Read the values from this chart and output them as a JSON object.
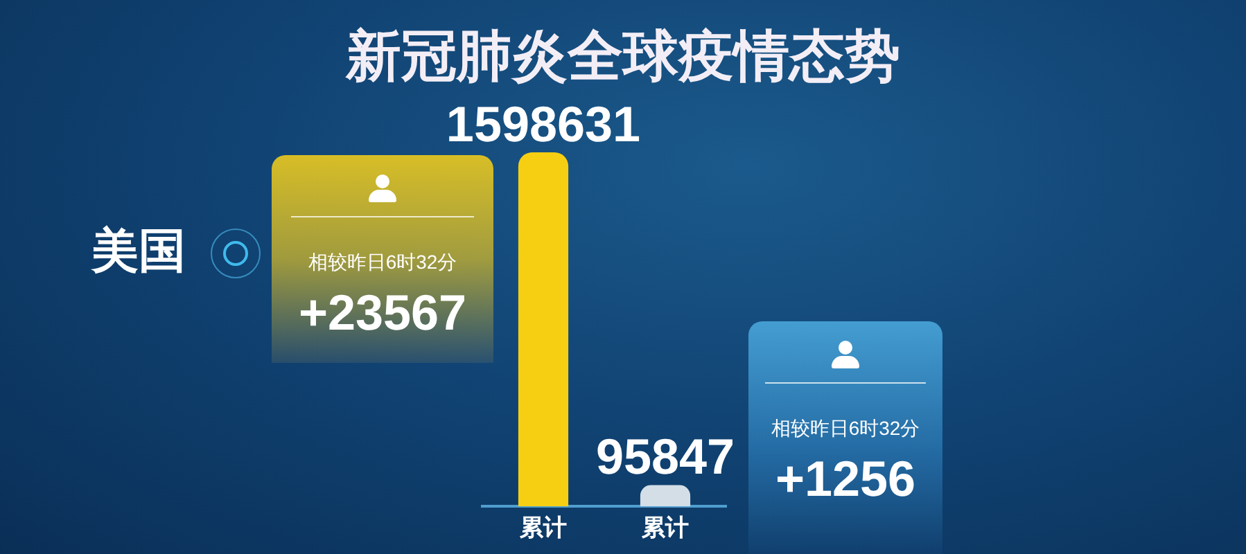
{
  "chart_data": {
    "type": "bar",
    "title": "新冠肺炎全球疫情态势",
    "categories": [
      "累计",
      "累计"
    ],
    "values": [
      1598631,
      95847
    ],
    "colors": [
      "#f7cf12",
      "#d4dee7"
    ],
    "data_labels": true,
    "legend": false,
    "grid": false,
    "tick_labels": "x",
    "annotations": [
      "美国",
      "相较昨日6时32分",
      "+23567",
      "相较昨日6时32分",
      "+1256"
    ]
  }
}
